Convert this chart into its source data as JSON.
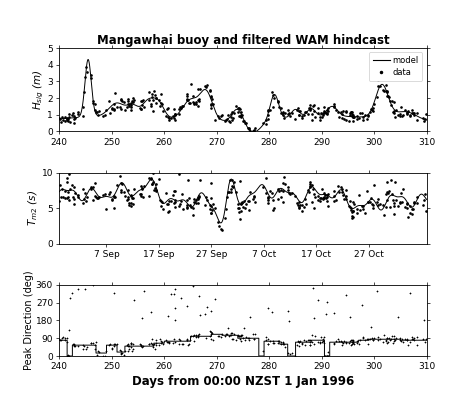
{
  "title": "Mangawhai buoy and filtered WAM hindcast",
  "xlabel": "Days from 00:00 NZST 1 Jan 1996",
  "xlim": [
    240,
    310
  ],
  "xticks": [
    240,
    250,
    260,
    270,
    280,
    290,
    300,
    310
  ],
  "panel1_ylabel": "$H_{sig}$ (m)",
  "panel1_ylim": [
    0,
    5
  ],
  "panel1_yticks": [
    0,
    1,
    2,
    3,
    4,
    5
  ],
  "panel2_ylabel": "$T_{m2}$ (s)",
  "panel2_ylim": [
    0,
    10
  ],
  "panel2_yticks": [
    0,
    5,
    10
  ],
  "panel2_xtick_labels": [
    "7 Sep",
    "17 Sep",
    "27 Sep",
    "7 Oct",
    "17 Oct",
    "27 Oct"
  ],
  "panel2_xtick_positions": [
    249,
    259,
    269,
    279,
    289,
    299
  ],
  "panel3_ylabel": "Peak Direction (deg)",
  "panel3_ylim": [
    0,
    360
  ],
  "panel3_yticks": [
    0,
    90,
    180,
    270,
    360
  ],
  "line_color": "#000000",
  "dot_color": "#000000",
  "background_color": "#ffffff",
  "legend_model": "model",
  "legend_data": "data"
}
